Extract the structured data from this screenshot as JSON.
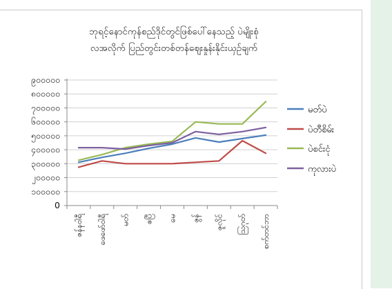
{
  "chart_data": {
    "type": "line",
    "title_lines": [
      "ဘုရင့်နောင်ကုန်စည်ဒိုင်တွင်ဖြစ်ပေါ်နေသည့် ပဲမျိုးစုံ",
      "လအလိုက် ပြည်တွင်းတစ်တန်ဈေးနှုန်းနိုင်းယှဉ်ချက်"
    ],
    "categories": [
      "ဇန်နဝါရီ",
      "ဖေဖော်ဝါရီ",
      "မတ်",
      "ဧပြီ",
      "မေ",
      "ဇွန်",
      "ဇူလိုင်",
      "ဩဂုတ်",
      "စက်တင်ဘာ"
    ],
    "ytick_labels": [
      "၉၀၀၀၀၀",
      "၈၀၀၀၀၀",
      "၇၀၀၀၀၀",
      "၆၀၀၀၀၀",
      "၅၀၀၀၀၀",
      "၄၀၀၀၀၀",
      "၃၀၀၀၀၀",
      "၂၀၀၀၀၀",
      "၁၀၀၀၀၀",
      "0"
    ],
    "ylim": [
      0,
      900000
    ],
    "grid": true,
    "legend_position": "right",
    "series": [
      {
        "name": "မတ်ပဲ",
        "color": "#4a7ebb",
        "values": [
          310000,
          345000,
          375000,
          410000,
          440000,
          485000,
          455000,
          480000,
          505000
        ]
      },
      {
        "name": "ပဲတီစိမ်း",
        "color": "#be4b48",
        "values": [
          275000,
          320000,
          300000,
          300000,
          300000,
          310000,
          320000,
          465000,
          375000
        ]
      },
      {
        "name": "ပဲစင်းငုံ",
        "color": "#98b954",
        "values": [
          325000,
          365000,
          415000,
          440000,
          460000,
          600000,
          585000,
          585000,
          745000
        ]
      },
      {
        "name": "ကုလားပဲ",
        "color": "#7d60a0",
        "values": [
          415000,
          415000,
          405000,
          430000,
          450000,
          530000,
          510000,
          530000,
          560000
        ]
      }
    ]
  }
}
